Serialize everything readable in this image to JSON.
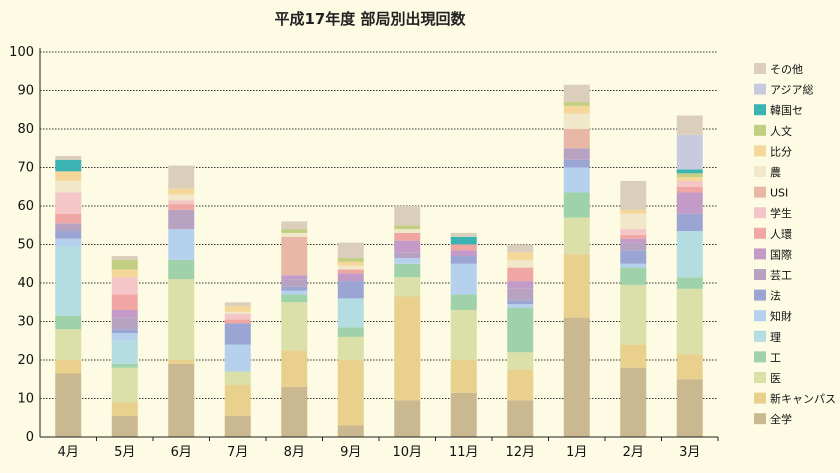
{
  "chart_data": {
    "type": "bar",
    "stacked": true,
    "title": "平成17年度 部局別出現回数",
    "xlabel": "",
    "ylabel": "",
    "ylim": [
      0,
      100
    ],
    "yticks": [
      0,
      10,
      20,
      30,
      40,
      50,
      60,
      70,
      80,
      90,
      100
    ],
    "grid": true,
    "legend_position": "right",
    "categories": [
      "4月",
      "5月",
      "6月",
      "7月",
      "8月",
      "9月",
      "10月",
      "11月",
      "12月",
      "1月",
      "2月",
      "3月"
    ],
    "series": [
      {
        "name": "全学",
        "color": "#c9b890",
        "values": [
          16.5,
          5.5,
          19,
          5.5,
          13,
          3,
          9.5,
          11.5,
          9.5,
          31,
          18,
          15
        ]
      },
      {
        "name": "新キャンパス",
        "color": "#ead08d",
        "values": [
          3.5,
          3.5,
          1,
          8,
          9.5,
          17,
          27,
          8.5,
          8,
          16.5,
          6,
          6.5
        ]
      },
      {
        "name": "医",
        "color": "#dbe0a8",
        "values": [
          8,
          9,
          21,
          3.5,
          12.5,
          6,
          5,
          13,
          4.5,
          9.5,
          15.5,
          17
        ]
      },
      {
        "name": "工",
        "color": "#9fd2a8",
        "values": [
          3.5,
          1,
          5,
          0,
          2,
          2.5,
          3.5,
          4,
          11.5,
          6.5,
          4.5,
          3
        ]
      },
      {
        "name": "理",
        "color": "#b4dde2",
        "values": [
          18,
          6,
          0,
          0,
          0,
          7.5,
          0,
          0,
          0,
          0,
          0,
          12
        ]
      },
      {
        "name": "知財",
        "color": "#b5d1ee",
        "values": [
          2,
          2,
          8,
          7,
          1,
          0,
          1.5,
          8,
          1,
          6.5,
          1,
          0
        ]
      },
      {
        "name": "法",
        "color": "#9aa5d3",
        "values": [
          2,
          1,
          0,
          5.5,
          1,
          4.5,
          0,
          2,
          1,
          2,
          3.5,
          4.5
        ]
      },
      {
        "name": "芸工",
        "color": "#b7a2c2",
        "values": [
          2,
          3,
          5,
          0,
          2,
          0,
          1.5,
          0,
          3,
          3,
          2,
          0
        ]
      },
      {
        "name": "国際",
        "color": "#c49bc8",
        "values": [
          0,
          2,
          0,
          0,
          1,
          2,
          3,
          1.5,
          2,
          0,
          1,
          5.5
        ]
      },
      {
        "name": "人環",
        "color": "#f0a7a3",
        "values": [
          2.5,
          4,
          1.5,
          1,
          0,
          1,
          2,
          1.5,
          3.5,
          0,
          1,
          1.5
        ]
      },
      {
        "name": "学生",
        "color": "#f5c6c8",
        "values": [
          5.5,
          4.5,
          1,
          1.5,
          0,
          0,
          0,
          0,
          0,
          0,
          1.5,
          1.5
        ]
      },
      {
        "name": "USI",
        "color": "#e9b7a5",
        "values": [
          0,
          0,
          0,
          0,
          10,
          0,
          0,
          0,
          0,
          5,
          0,
          0
        ]
      },
      {
        "name": "農",
        "color": "#f0e8c8",
        "values": [
          3,
          0,
          1.5,
          0.5,
          1,
          1,
          1,
          0,
          2,
          4,
          4,
          0
        ]
      },
      {
        "name": "比分",
        "color": "#f5d79a",
        "values": [
          2.5,
          2,
          1.5,
          1.5,
          0,
          1,
          0,
          0,
          2,
          2,
          1,
          1
        ]
      },
      {
        "name": "人文",
        "color": "#c2cf82",
        "values": [
          0,
          2.5,
          0,
          0,
          1,
          1,
          1,
          0,
          0,
          1,
          0,
          1
        ]
      },
      {
        "name": "韓国セ",
        "color": "#3cb3b3",
        "values": [
          3,
          0,
          0,
          0,
          0,
          0,
          0,
          2,
          0,
          0,
          0,
          1
        ]
      },
      {
        "name": "アジア総",
        "color": "#c8cbe0",
        "values": [
          0,
          0,
          0,
          0,
          0,
          0,
          0,
          0,
          0,
          0,
          0,
          9
        ]
      },
      {
        "name": "その他",
        "color": "#dbcfbc",
        "values": [
          1,
          1,
          6,
          1,
          2,
          4,
          5,
          1,
          2,
          4.5,
          7.5,
          5
        ]
      }
    ]
  }
}
